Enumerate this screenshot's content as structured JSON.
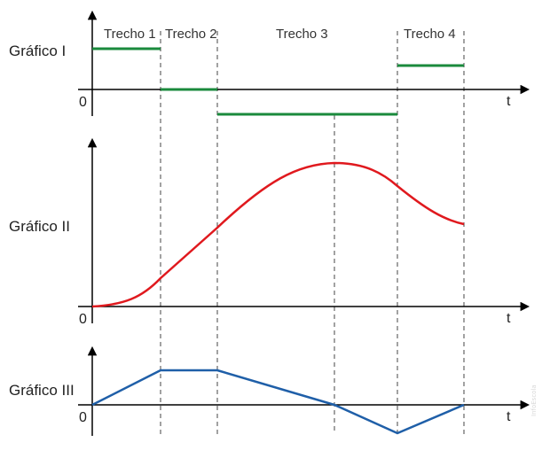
{
  "segments": {
    "t1": "Trecho 1",
    "t2": "Trecho 2",
    "t3": "Trecho 3",
    "t4": "Trecho 4"
  },
  "graphs": {
    "g1": {
      "title": "Gráfico I",
      "origin": "0",
      "axis": "t"
    },
    "g2": {
      "title": "Gráfico II",
      "origin": "0",
      "axis": "t"
    },
    "g3": {
      "title": "Gráfico III",
      "origin": "0",
      "axis": "t"
    }
  },
  "watermark": "InfoEscola",
  "colors": {
    "graph1": "#1a8a3c",
    "graph2": "#e0191e",
    "graph3": "#1f5fa8",
    "axes": "#000000",
    "dashed": "#444444"
  }
}
